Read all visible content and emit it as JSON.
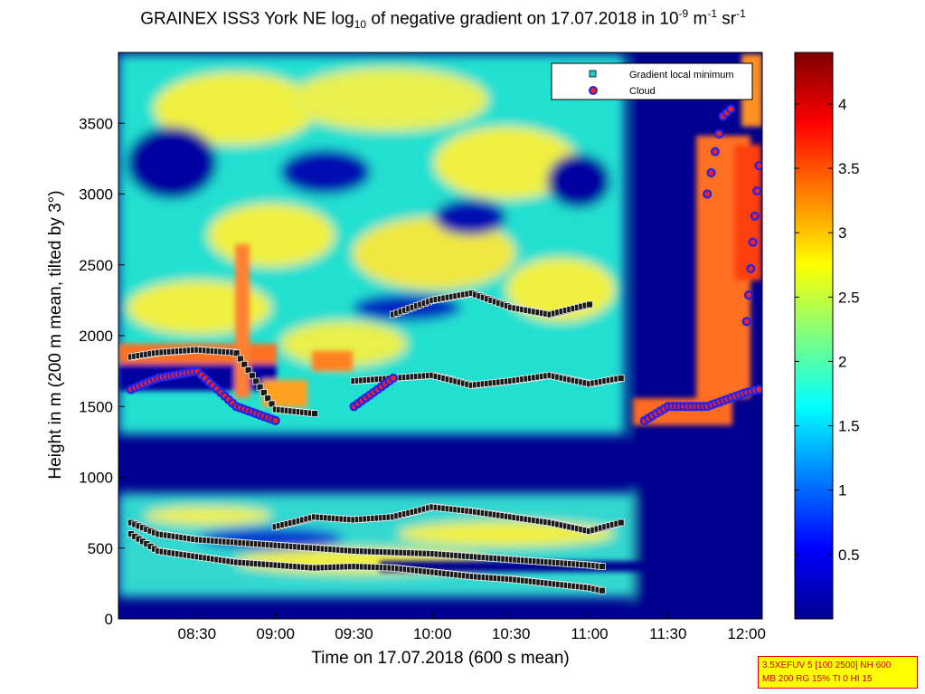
{
  "chart_data": {
    "type": "heatmap",
    "title_main": "GRAINEX ISS3 York NE log",
    "title_sub10": "10",
    "title_mid": " of negative gradient on 17.07.2018 in 10",
    "title_exp1": "-9",
    "title_unit1": " m",
    "title_exp2": "-1",
    "title_unit2": " sr",
    "title_exp3": "-1",
    "xlabel": "Time on 17.07.2018 (600 s mean)",
    "ylabel": "Height in m (200 m mean, tilted by 3°)",
    "x_ticks": [
      "08:30",
      "09:00",
      "09:30",
      "10:00",
      "10:30",
      "11:00",
      "11:30",
      "12:00"
    ],
    "y_ticks": [
      "0",
      "500",
      "1000",
      "1500",
      "2000",
      "2500",
      "3000",
      "3500"
    ],
    "ylim": [
      0,
      4000
    ],
    "colorbar_ticks": [
      "0.5",
      "1",
      "1.5",
      "2",
      "2.5",
      "3",
      "3.5",
      "4"
    ],
    "colorbar_range": [
      0,
      4.4
    ],
    "legend": [
      {
        "label": "Gradient local minimum",
        "marker": "square",
        "color": "#22cccc"
      },
      {
        "label": "Cloud",
        "marker": "circle",
        "color": "#ee2222",
        "edge": "#2222ee"
      }
    ],
    "legend_position": "top-right",
    "series": [
      {
        "name": "Gradient local minimum",
        "layers": [
          {
            "x": [
              8.08,
              8.25,
              8.5,
              8.75,
              9.0,
              9.25,
              9.5,
              9.75,
              10.0,
              10.25,
              10.5,
              10.75,
              11.0,
              11.08
            ],
            "y": [
              600,
              480,
              440,
              400,
              380,
              360,
              370,
              360,
              330,
              300,
              280,
              250,
              220,
              200
            ]
          },
          {
            "x": [
              8.08,
              8.25,
              8.5,
              8.75,
              9.0,
              9.25,
              9.5,
              9.75,
              10.0,
              10.25,
              10.5,
              10.75,
              11.0,
              11.08
            ],
            "y": [
              680,
              600,
              560,
              540,
              520,
              500,
              480,
              470,
              460,
              440,
              420,
              400,
              380,
              370
            ]
          },
          {
            "x": [
              9.0,
              9.25,
              9.5,
              9.75,
              10.0,
              10.25,
              10.5,
              10.75,
              11.0,
              11.2
            ],
            "y": [
              650,
              720,
              700,
              720,
              790,
              760,
              720,
              680,
              620,
              680
            ]
          },
          {
            "x": [
              8.08,
              8.25,
              8.5,
              8.75,
              9.0,
              9.25
            ],
            "y": [
              1850,
              1880,
              1900,
              1880,
              1480,
              1450
            ]
          },
          {
            "x": [
              9.5,
              9.75,
              10.0,
              10.25,
              10.5,
              10.75,
              11.0,
              11.2
            ],
            "y": [
              1680,
              1700,
              1720,
              1650,
              1680,
              1720,
              1660,
              1700
            ]
          },
          {
            "x": [
              9.75,
              10.0,
              10.25,
              10.5,
              10.75,
              11.0
            ],
            "y": [
              2150,
              2250,
              2300,
              2200,
              2150,
              2220
            ]
          }
        ]
      },
      {
        "name": "Cloud",
        "layers": [
          {
            "x": [
              8.08,
              8.25,
              8.5,
              8.75,
              9.0
            ],
            "y": [
              1620,
              1700,
              1750,
              1500,
              1400
            ]
          },
          {
            "x": [
              9.5,
              9.75
            ],
            "y": [
              1500,
              1700
            ]
          },
          {
            "x": [
              11.35,
              11.5,
              11.75,
              12.0,
              12.08
            ],
            "y": [
              1400,
              1500,
              1500,
              1600,
              1620
            ]
          },
          {
            "x": [
              11.75,
              11.8,
              11.85,
              11.9
            ],
            "y": [
              3000,
              3300,
              3550,
              3600
            ]
          },
          {
            "x": [
              12.0,
              12.05,
              12.08
            ],
            "y": [
              2100,
              2800,
              3200
            ]
          }
        ]
      }
    ]
  },
  "infobox": {
    "line1": "3.5XEFUV 5 [100 2500] NH 600",
    "line2": "MB 200 RG 15% TI 0 HI 15"
  }
}
